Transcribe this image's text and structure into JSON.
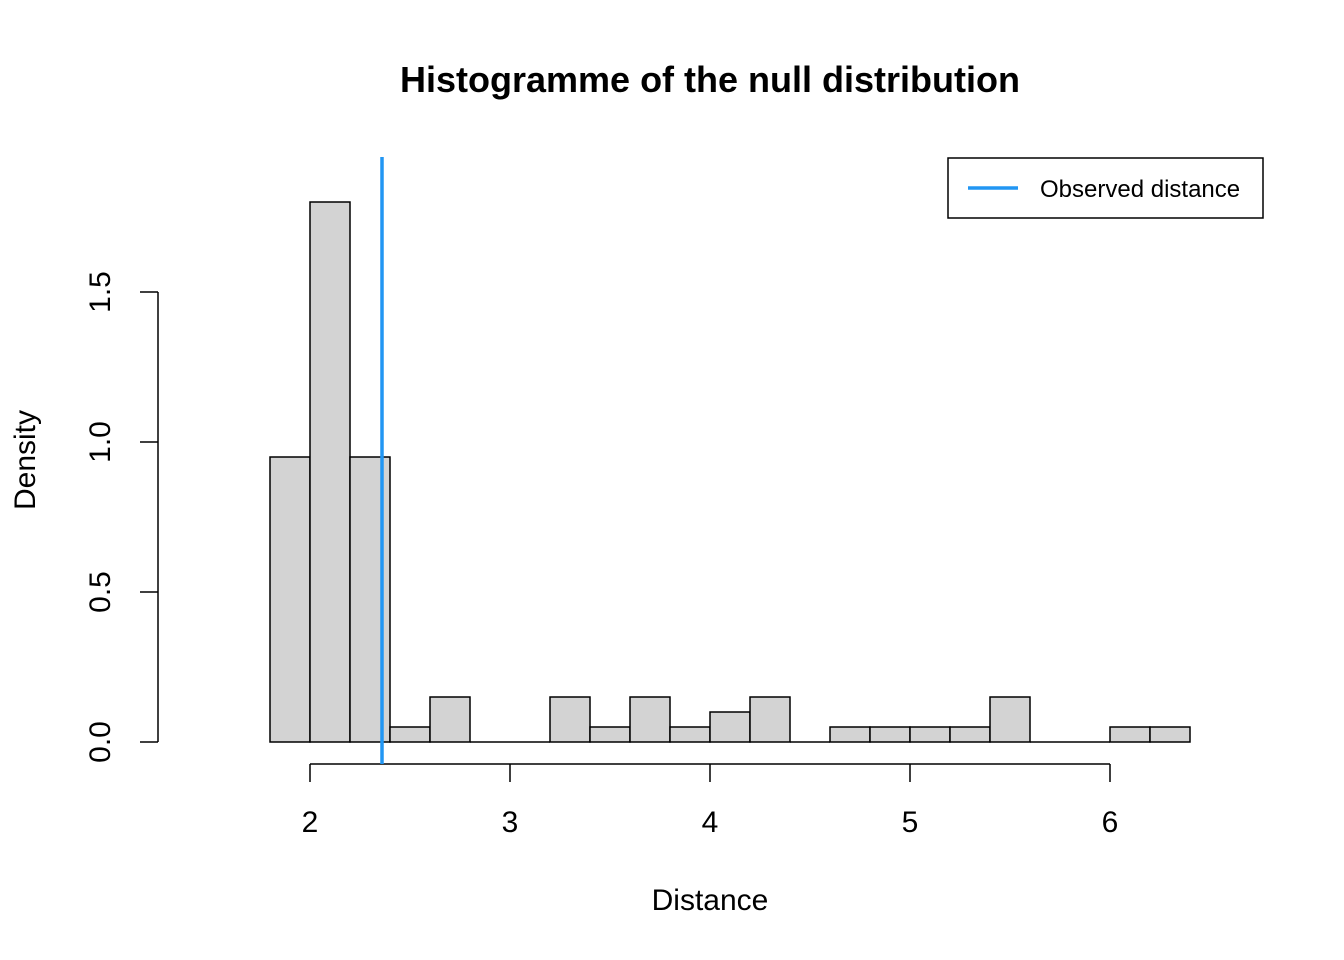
{
  "chart_data": {
    "type": "bar",
    "title": "Histogramme of the null distribution",
    "xlabel": "Distance",
    "ylabel": "Density",
    "bin_width": 0.2,
    "bin_edges": [
      1.8,
      2.0,
      2.2,
      2.4,
      2.6,
      2.8,
      3.0,
      3.2,
      3.4,
      3.6,
      3.8,
      4.0,
      4.2,
      4.4,
      4.6,
      4.8,
      5.0,
      5.2,
      5.4,
      5.6,
      5.8,
      6.0,
      6.2,
      6.4
    ],
    "values": [
      0.95,
      1.8,
      0.95,
      0.05,
      0.15,
      0.0,
      0.0,
      0.15,
      0.05,
      0.15,
      0.05,
      0.1,
      0.15,
      0.0,
      0.05,
      0.05,
      0.05,
      0.05,
      0.15,
      0.0,
      0.0,
      0.05,
      0.05
    ],
    "x_ticks": [
      "2",
      "3",
      "4",
      "5",
      "6"
    ],
    "y_ticks": [
      "0.0",
      "0.5",
      "1.0",
      "1.5"
    ],
    "xlim": [
      1.24,
      6.76
    ],
    "ylim": [
      0,
      1.9
    ],
    "bar_fill": "#d3d3d3",
    "bar_stroke": "#000000",
    "observed_distance": 2.36,
    "observed_color": "#2196f3",
    "legend": {
      "position": "top-right",
      "entries": [
        {
          "label": "Observed distance",
          "color": "#2196f3"
        }
      ]
    },
    "grid": false
  }
}
